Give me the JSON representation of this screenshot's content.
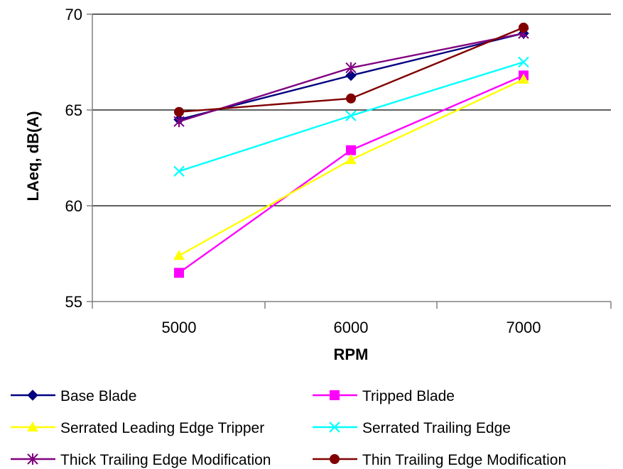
{
  "chart_data": {
    "type": "line",
    "title": "",
    "xlabel": "RPM",
    "ylabel": "LAeq, dB(A)",
    "x": [
      5000,
      6000,
      7000
    ],
    "x_tick_labels": [
      "5000",
      "6000",
      "7000"
    ],
    "y_tick_labels": [
      "55",
      "60",
      "65",
      "70"
    ],
    "ylim": [
      55,
      70
    ],
    "y_ticks": [
      55,
      60,
      65,
      70
    ],
    "grid": "horizontal major gridlines",
    "legend_position": "bottom",
    "series": [
      {
        "name": "Base Blade",
        "values": [
          64.5,
          66.8,
          69.0
        ],
        "color": "#000080",
        "marker": "diamond"
      },
      {
        "name": "Tripped Blade",
        "values": [
          56.5,
          62.9,
          66.8
        ],
        "color": "#FF00FF",
        "marker": "square"
      },
      {
        "name": "Serrated Leading Edge Tripper",
        "values": [
          57.4,
          62.4,
          66.6
        ],
        "color": "#FFFF00",
        "marker": "triangle"
      },
      {
        "name": "Serrated Trailing Edge",
        "values": [
          61.8,
          64.7,
          67.5
        ],
        "color": "#00FFFF",
        "marker": "x"
      },
      {
        "name": "Thick Trailing Edge Modification",
        "values": [
          64.4,
          67.2,
          69.0
        ],
        "color": "#800080",
        "marker": "asterisk"
      },
      {
        "name": "Thin Trailing Edge Modification",
        "values": [
          64.9,
          65.6,
          69.3
        ],
        "color": "#800000",
        "marker": "circle"
      }
    ]
  }
}
